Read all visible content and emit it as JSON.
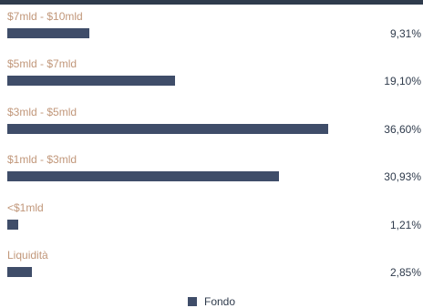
{
  "chart_data": {
    "type": "bar",
    "orientation": "horizontal",
    "categories": [
      "$7mld - $10mld",
      "$5mld - $7mld",
      "$3mld - $5mld",
      "$1mld - $3mld",
      "<$1mld",
      "Liquidità"
    ],
    "series": [
      {
        "name": "Fondo",
        "values": [
          9.31,
          19.1,
          36.6,
          30.93,
          1.21,
          2.85
        ],
        "labels": [
          "9,31%",
          "19,10%",
          "36,60%",
          "30,93%",
          "1,21%",
          "2,85%"
        ]
      }
    ],
    "xlim": [
      0,
      37.7
    ],
    "grid": false,
    "legend_placement": "bottom-center"
  },
  "colors": {
    "bar": "#3f4d69",
    "category_text": "#c1977a",
    "value_text": "#2f3b4c",
    "top_strip": "#2f3b4c"
  },
  "legend": {
    "label": "Fondo"
  }
}
